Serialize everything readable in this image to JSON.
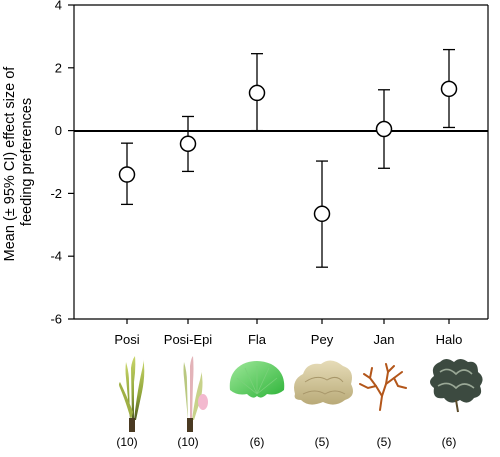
{
  "chart_data": {
    "type": "scatter",
    "subtype": "point-with-error-bars",
    "ylabel_lines": [
      "Mean (± 95% CI) effect size of",
      "feeding preferences"
    ],
    "xlabel": "",
    "ylim": [
      -6,
      4
    ],
    "yticks": [
      4,
      2,
      0,
      -2,
      -4,
      -6
    ],
    "zero_line": true,
    "grid": false,
    "categories": [
      "Posi",
      "Posi-Epi",
      "Fla",
      "Pey",
      "Jan",
      "Halo"
    ],
    "sample_sizes": [
      "(10)",
      "(10)",
      "(6)",
      "(5)",
      "(5)",
      "(6)"
    ],
    "series": [
      {
        "mean": [
          -1.4,
          -0.42,
          1.2,
          -2.65,
          0.05,
          1.33
        ],
        "lower": [
          -2.35,
          -1.3,
          0.0,
          -4.35,
          -1.2,
          0.1
        ],
        "upper": [
          -0.4,
          0.45,
          2.45,
          -0.97,
          1.3,
          2.58
        ]
      }
    ],
    "icons": [
      "seagrass-icon",
      "seagrass-epiphyte-icon",
      "fan-alga-icon",
      "peyssonnelia-icon",
      "jania-icon",
      "halopteris-icon"
    ],
    "colors": {
      "axis": "#000000",
      "marker_fill": "#ffffff",
      "marker_stroke": "#000000"
    }
  }
}
